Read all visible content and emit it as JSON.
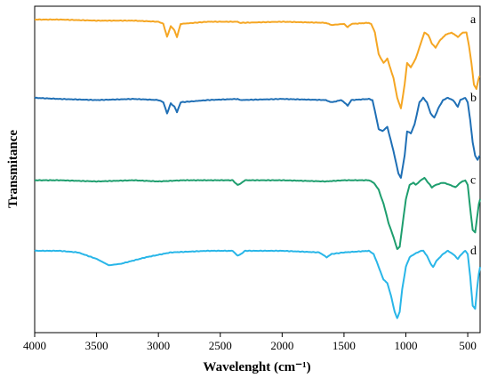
{
  "chart_data": {
    "type": "line",
    "xlabel": "Wavelenght (cm⁻¹)",
    "ylabel": "Transmitance",
    "x_ticks": [
      4000,
      3500,
      3000,
      2500,
      2000,
      1500,
      1000,
      500
    ],
    "xlim": [
      4000,
      400
    ],
    "x_reversed": true,
    "ylim": [
      0,
      100
    ],
    "grid": false,
    "legend": "none",
    "series": [
      {
        "name": "a",
        "color": "#f5a623",
        "points": [
          [
            4000,
            92
          ],
          [
            3800,
            92
          ],
          [
            3500,
            91.5
          ],
          [
            3200,
            91.5
          ],
          [
            3000,
            91
          ],
          [
            2960,
            90
          ],
          [
            2930,
            84
          ],
          [
            2900,
            89
          ],
          [
            2870,
            87
          ],
          [
            2850,
            84
          ],
          [
            2820,
            90
          ],
          [
            2600,
            91
          ],
          [
            2360,
            91
          ],
          [
            2340,
            90.5
          ],
          [
            2000,
            91
          ],
          [
            1650,
            90.5
          ],
          [
            1600,
            89.5
          ],
          [
            1500,
            90
          ],
          [
            1470,
            88.5
          ],
          [
            1440,
            90
          ],
          [
            1300,
            90.5
          ],
          [
            1280,
            90
          ],
          [
            1250,
            86
          ],
          [
            1220,
            76
          ],
          [
            1180,
            72
          ],
          [
            1150,
            74
          ],
          [
            1100,
            65
          ],
          [
            1070,
            56
          ],
          [
            1040,
            51
          ],
          [
            1010,
            62
          ],
          [
            990,
            72
          ],
          [
            960,
            70
          ],
          [
            920,
            74
          ],
          [
            880,
            81
          ],
          [
            850,
            86
          ],
          [
            820,
            85
          ],
          [
            790,
            81
          ],
          [
            760,
            79
          ],
          [
            730,
            82
          ],
          [
            680,
            85
          ],
          [
            630,
            86
          ],
          [
            580,
            84
          ],
          [
            540,
            86
          ],
          [
            510,
            86
          ],
          [
            490,
            80
          ],
          [
            470,
            72
          ],
          [
            450,
            62
          ],
          [
            430,
            60
          ],
          [
            415,
            64
          ],
          [
            405,
            66
          ]
        ]
      },
      {
        "name": "b",
        "color": "#1f6fb5",
        "points": [
          [
            4000,
            68
          ],
          [
            3800,
            67.5
          ],
          [
            3500,
            67
          ],
          [
            3200,
            67.5
          ],
          [
            3000,
            67
          ],
          [
            2960,
            66
          ],
          [
            2930,
            61
          ],
          [
            2900,
            65.5
          ],
          [
            2870,
            64
          ],
          [
            2850,
            61.5
          ],
          [
            2820,
            66
          ],
          [
            2600,
            67
          ],
          [
            2360,
            67.5
          ],
          [
            2340,
            67
          ],
          [
            2000,
            67.5
          ],
          [
            1650,
            67
          ],
          [
            1600,
            66
          ],
          [
            1520,
            67
          ],
          [
            1470,
            64.5
          ],
          [
            1440,
            67
          ],
          [
            1300,
            67.5
          ],
          [
            1270,
            67
          ],
          [
            1250,
            62
          ],
          [
            1220,
            54
          ],
          [
            1190,
            53
          ],
          [
            1150,
            55
          ],
          [
            1100,
            44
          ],
          [
            1060,
            34
          ],
          [
            1040,
            32
          ],
          [
            1010,
            42
          ],
          [
            990,
            53
          ],
          [
            960,
            52
          ],
          [
            930,
            56
          ],
          [
            890,
            66
          ],
          [
            860,
            68
          ],
          [
            830,
            66
          ],
          [
            800,
            61
          ],
          [
            770,
            59
          ],
          [
            740,
            63
          ],
          [
            700,
            67
          ],
          [
            660,
            68
          ],
          [
            620,
            67
          ],
          [
            580,
            64
          ],
          [
            560,
            67
          ],
          [
            520,
            68
          ],
          [
            500,
            66
          ],
          [
            480,
            58
          ],
          [
            460,
            48
          ],
          [
            440,
            42
          ],
          [
            420,
            40
          ],
          [
            405,
            42
          ]
        ]
      },
      {
        "name": "c",
        "color": "#1e9e6e",
        "points": [
          [
            4000,
            46
          ],
          [
            3800,
            46
          ],
          [
            3500,
            45.5
          ],
          [
            3200,
            46
          ],
          [
            3000,
            45.5
          ],
          [
            2800,
            46
          ],
          [
            2600,
            46
          ],
          [
            2400,
            46
          ],
          [
            2360,
            44
          ],
          [
            2340,
            44.5
          ],
          [
            2300,
            46
          ],
          [
            2000,
            46
          ],
          [
            1650,
            45.5
          ],
          [
            1500,
            46
          ],
          [
            1300,
            46
          ],
          [
            1260,
            45
          ],
          [
            1220,
            42
          ],
          [
            1180,
            36
          ],
          [
            1140,
            28
          ],
          [
            1100,
            22
          ],
          [
            1070,
            17
          ],
          [
            1050,
            18
          ],
          [
            1030,
            26
          ],
          [
            1000,
            38
          ],
          [
            970,
            44
          ],
          [
            940,
            45
          ],
          [
            920,
            44
          ],
          [
            880,
            46
          ],
          [
            850,
            47
          ],
          [
            820,
            45
          ],
          [
            790,
            43
          ],
          [
            760,
            44
          ],
          [
            700,
            45
          ],
          [
            640,
            44
          ],
          [
            600,
            43
          ],
          [
            560,
            45
          ],
          [
            520,
            46
          ],
          [
            500,
            44
          ],
          [
            480,
            34
          ],
          [
            460,
            25
          ],
          [
            440,
            24
          ],
          [
            425,
            30
          ],
          [
            410,
            36
          ],
          [
            400,
            38
          ]
        ]
      },
      {
        "name": "d",
        "color": "#29b6e8",
        "points": [
          [
            4000,
            22
          ],
          [
            3800,
            22
          ],
          [
            3650,
            21.5
          ],
          [
            3500,
            19.5
          ],
          [
            3400,
            17.5
          ],
          [
            3300,
            18
          ],
          [
            3100,
            20
          ],
          [
            2900,
            21.5
          ],
          [
            2600,
            22
          ],
          [
            2400,
            22
          ],
          [
            2360,
            20.5
          ],
          [
            2340,
            20.8
          ],
          [
            2300,
            22
          ],
          [
            2000,
            22
          ],
          [
            1700,
            21.5
          ],
          [
            1640,
            20
          ],
          [
            1600,
            21
          ],
          [
            1500,
            21.5
          ],
          [
            1300,
            22
          ],
          [
            1260,
            21
          ],
          [
            1220,
            17
          ],
          [
            1180,
            13
          ],
          [
            1150,
            12
          ],
          [
            1120,
            8
          ],
          [
            1090,
            3
          ],
          [
            1070,
            1
          ],
          [
            1050,
            3
          ],
          [
            1030,
            10
          ],
          [
            1000,
            17
          ],
          [
            970,
            20
          ],
          [
            930,
            21
          ],
          [
            880,
            22
          ],
          [
            860,
            22
          ],
          [
            830,
            20.5
          ],
          [
            800,
            18
          ],
          [
            780,
            17
          ],
          [
            750,
            19
          ],
          [
            700,
            21
          ],
          [
            660,
            22
          ],
          [
            620,
            21
          ],
          [
            580,
            19.5
          ],
          [
            550,
            21
          ],
          [
            520,
            22
          ],
          [
            500,
            21
          ],
          [
            480,
            14
          ],
          [
            460,
            5
          ],
          [
            440,
            4
          ],
          [
            425,
            10
          ],
          [
            410,
            15
          ],
          [
            400,
            17
          ]
        ]
      }
    ]
  }
}
